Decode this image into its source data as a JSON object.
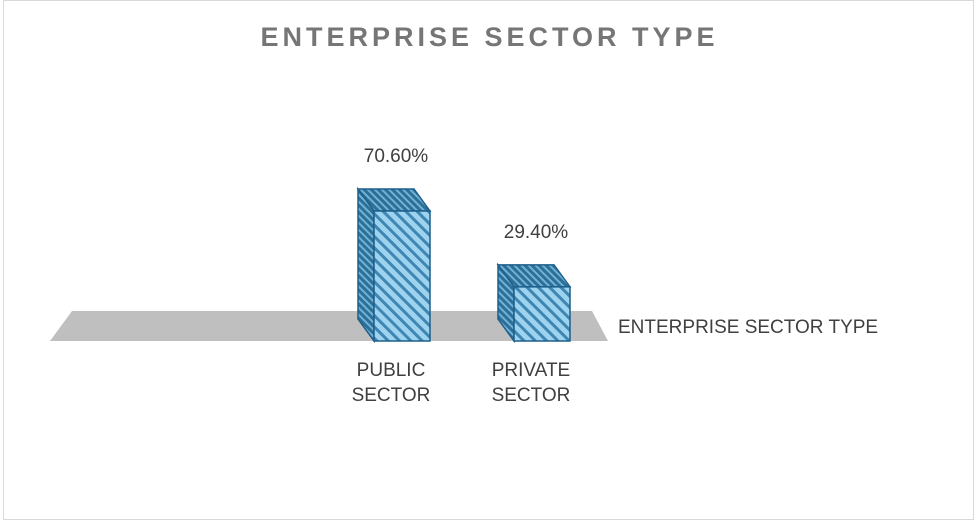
{
  "chart_data": {
    "type": "bar",
    "title": "ENTERPRISE SECTOR TYPE",
    "categories": [
      "PUBLIC SECTOR",
      "PRIVATE SECTOR"
    ],
    "category_lines": [
      [
        "PUBLIC",
        "SECTOR"
      ],
      [
        "PRIVATE",
        "SECTOR"
      ]
    ],
    "series": [
      {
        "name": "ENTERPRISE SECTOR TYPE",
        "values": [
          70.6,
          29.4
        ]
      }
    ],
    "data_labels": [
      "70.60%",
      "29.40%"
    ],
    "units": "%",
    "ylim": [
      0,
      100
    ],
    "three_d": true,
    "legend_position": "right",
    "colors": {
      "bar_fill": "#9dd3ee",
      "bar_hatch": "#3f86b2",
      "bar_top": "#2e6f96",
      "bar_outline": "#1f5f8b",
      "floor": "#bfbfbf"
    }
  }
}
